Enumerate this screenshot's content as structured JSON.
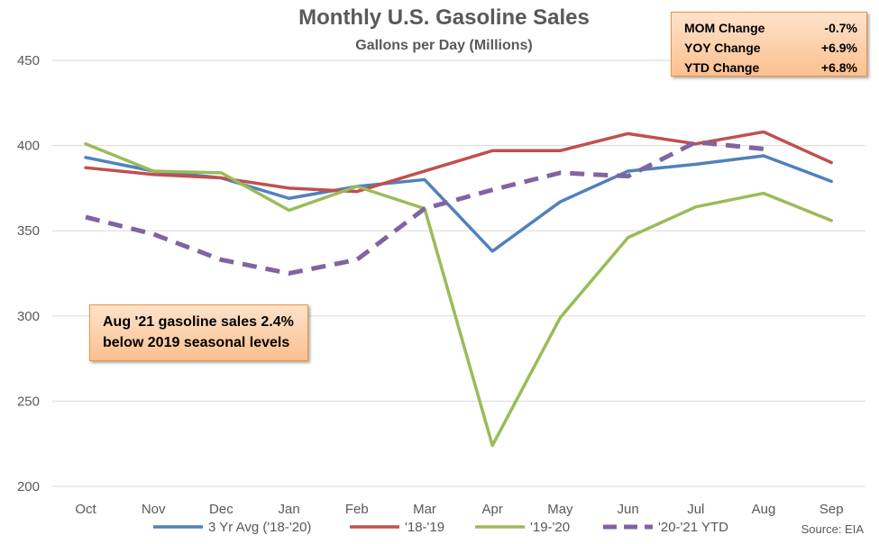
{
  "chart_data": {
    "type": "line",
    "title": "Monthly U.S. Gasoline Sales",
    "subtitle": "Gallons per Day (Millions)",
    "categories": [
      "Oct",
      "Nov",
      "Dec",
      "Jan",
      "Feb",
      "Mar",
      "Apr",
      "May",
      "Jun",
      "Jul",
      "Aug",
      "Sep"
    ],
    "ylim": [
      200,
      450
    ],
    "yticks": [
      200,
      250,
      300,
      350,
      400,
      450
    ],
    "grid": true,
    "legend_position": "bottom",
    "series": [
      {
        "name": "3 Yr Avg ('18-'20)",
        "color": "#4f81bd",
        "dashed": false,
        "values": [
          393,
          385,
          381,
          369,
          376,
          380,
          338,
          367,
          385,
          389,
          394,
          379
        ]
      },
      {
        "name": "'18-'19",
        "color": "#c0504d",
        "dashed": false,
        "values": [
          387,
          383,
          381,
          375,
          373,
          385,
          397,
          397,
          407,
          401,
          408,
          390
        ]
      },
      {
        "name": "'19-'20",
        "color": "#9bbb59",
        "dashed": false,
        "values": [
          401,
          385,
          384,
          362,
          376,
          363,
          224,
          299,
          346,
          364,
          372,
          356
        ]
      },
      {
        "name": "'20-'21 YTD",
        "color": "#8064a2",
        "dashed": true,
        "values": [
          358,
          348,
          333,
          325,
          333,
          363,
          374,
          384,
          382,
          402,
          398,
          null
        ]
      }
    ],
    "annotations": {
      "stats": [
        {
          "label": "MOM Change",
          "value": "-0.7%"
        },
        {
          "label": "YOY Change",
          "value": "+6.9%"
        },
        {
          "label": "YTD Change",
          "value": "+6.8%"
        }
      ],
      "note_lines": [
        "Aug '21 gasoline sales 2.4%",
        "below 2019 seasonal levels"
      ],
      "source": "Source: EIA"
    }
  }
}
